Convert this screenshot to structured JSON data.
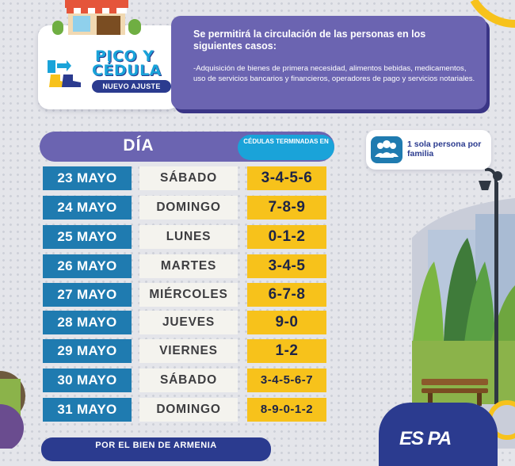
{
  "logo": {
    "line1": "PICO Y",
    "line2": "CÉDULA",
    "tag": "NUEVO AJUSTE"
  },
  "info": {
    "title": "Se permitirá la circulación de las personas en los siguientes casos:",
    "body": "-Adquisición de bienes de primera necesidad, alimentos bebidas, medicamentos, uso de servicios bancarios y financieros, operadores de pago y servicios notariales."
  },
  "table": {
    "header_day": "DÍA",
    "header_cedulas": "CÉDULAS TERMINADAS EN",
    "rows": [
      {
        "date": "23 MAYO",
        "day": "SÁBADO",
        "digits": "3-4-5-6"
      },
      {
        "date": "24 MAYO",
        "day": "DOMINGO",
        "digits": "7-8-9"
      },
      {
        "date": "25 MAYO",
        "day": "LUNES",
        "digits": "0-1-2"
      },
      {
        "date": "26 MAYO",
        "day": "MARTES",
        "digits": "3-4-5"
      },
      {
        "date": "27 MAYO",
        "day": "MIÉRCOLES",
        "digits": "6-7-8"
      },
      {
        "date": "28 MAYO",
        "day": "JUEVES",
        "digits": "9-0"
      },
      {
        "date": "29 MAYO",
        "day": "VIERNES",
        "digits": "1-2"
      },
      {
        "date": "30 MAYO",
        "day": "SÁBADO",
        "digits": "3-4-5-6-7"
      },
      {
        "date": "31 MAYO",
        "day": "DOMINGO",
        "digits": "8-9-0-1-2"
      }
    ]
  },
  "badge": {
    "text": "1 sola persona por familia",
    "icon": "people-group-icon"
  },
  "footer": {
    "text": "POR EL BIEN DE ARMENIA",
    "brand": "ES PA"
  },
  "colors": {
    "purple": "#6b64b1",
    "dark_blue": "#2b3b8f",
    "cyan": "#1aa3d9",
    "date_blue": "#1f7bb0",
    "yellow": "#f7c21b",
    "cream": "#f4f3ee"
  }
}
